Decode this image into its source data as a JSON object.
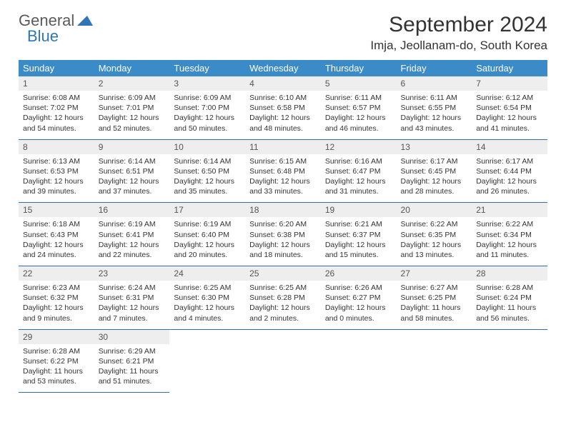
{
  "logo": {
    "line1": "General",
    "line2": "Blue"
  },
  "title": "September 2024",
  "location": "Imja, Jeollanam-do, South Korea",
  "colors": {
    "header_bg": "#3b8bc8",
    "header_text": "#ffffff",
    "daynum_bg": "#eeeeee",
    "row_border": "#2f6ea8",
    "logo_blue": "#2f76b8",
    "body_text": "#333333"
  },
  "weekdays": [
    "Sunday",
    "Monday",
    "Tuesday",
    "Wednesday",
    "Thursday",
    "Friday",
    "Saturday"
  ],
  "weeks": [
    [
      {
        "n": "1",
        "sr": "6:08 AM",
        "ss": "7:02 PM",
        "dl": "12 hours and 54 minutes."
      },
      {
        "n": "2",
        "sr": "6:09 AM",
        "ss": "7:01 PM",
        "dl": "12 hours and 52 minutes."
      },
      {
        "n": "3",
        "sr": "6:09 AM",
        "ss": "7:00 PM",
        "dl": "12 hours and 50 minutes."
      },
      {
        "n": "4",
        "sr": "6:10 AM",
        "ss": "6:58 PM",
        "dl": "12 hours and 48 minutes."
      },
      {
        "n": "5",
        "sr": "6:11 AM",
        "ss": "6:57 PM",
        "dl": "12 hours and 46 minutes."
      },
      {
        "n": "6",
        "sr": "6:11 AM",
        "ss": "6:55 PM",
        "dl": "12 hours and 43 minutes."
      },
      {
        "n": "7",
        "sr": "6:12 AM",
        "ss": "6:54 PM",
        "dl": "12 hours and 41 minutes."
      }
    ],
    [
      {
        "n": "8",
        "sr": "6:13 AM",
        "ss": "6:53 PM",
        "dl": "12 hours and 39 minutes."
      },
      {
        "n": "9",
        "sr": "6:14 AM",
        "ss": "6:51 PM",
        "dl": "12 hours and 37 minutes."
      },
      {
        "n": "10",
        "sr": "6:14 AM",
        "ss": "6:50 PM",
        "dl": "12 hours and 35 minutes."
      },
      {
        "n": "11",
        "sr": "6:15 AM",
        "ss": "6:48 PM",
        "dl": "12 hours and 33 minutes."
      },
      {
        "n": "12",
        "sr": "6:16 AM",
        "ss": "6:47 PM",
        "dl": "12 hours and 31 minutes."
      },
      {
        "n": "13",
        "sr": "6:17 AM",
        "ss": "6:45 PM",
        "dl": "12 hours and 28 minutes."
      },
      {
        "n": "14",
        "sr": "6:17 AM",
        "ss": "6:44 PM",
        "dl": "12 hours and 26 minutes."
      }
    ],
    [
      {
        "n": "15",
        "sr": "6:18 AM",
        "ss": "6:43 PM",
        "dl": "12 hours and 24 minutes."
      },
      {
        "n": "16",
        "sr": "6:19 AM",
        "ss": "6:41 PM",
        "dl": "12 hours and 22 minutes."
      },
      {
        "n": "17",
        "sr": "6:19 AM",
        "ss": "6:40 PM",
        "dl": "12 hours and 20 minutes."
      },
      {
        "n": "18",
        "sr": "6:20 AM",
        "ss": "6:38 PM",
        "dl": "12 hours and 18 minutes."
      },
      {
        "n": "19",
        "sr": "6:21 AM",
        "ss": "6:37 PM",
        "dl": "12 hours and 15 minutes."
      },
      {
        "n": "20",
        "sr": "6:22 AM",
        "ss": "6:35 PM",
        "dl": "12 hours and 13 minutes."
      },
      {
        "n": "21",
        "sr": "6:22 AM",
        "ss": "6:34 PM",
        "dl": "12 hours and 11 minutes."
      }
    ],
    [
      {
        "n": "22",
        "sr": "6:23 AM",
        "ss": "6:32 PM",
        "dl": "12 hours and 9 minutes."
      },
      {
        "n": "23",
        "sr": "6:24 AM",
        "ss": "6:31 PM",
        "dl": "12 hours and 7 minutes."
      },
      {
        "n": "24",
        "sr": "6:25 AM",
        "ss": "6:30 PM",
        "dl": "12 hours and 4 minutes."
      },
      {
        "n": "25",
        "sr": "6:25 AM",
        "ss": "6:28 PM",
        "dl": "12 hours and 2 minutes."
      },
      {
        "n": "26",
        "sr": "6:26 AM",
        "ss": "6:27 PM",
        "dl": "12 hours and 0 minutes."
      },
      {
        "n": "27",
        "sr": "6:27 AM",
        "ss": "6:25 PM",
        "dl": "11 hours and 58 minutes."
      },
      {
        "n": "28",
        "sr": "6:28 AM",
        "ss": "6:24 PM",
        "dl": "11 hours and 56 minutes."
      }
    ],
    [
      {
        "n": "29",
        "sr": "6:28 AM",
        "ss": "6:22 PM",
        "dl": "11 hours and 53 minutes."
      },
      {
        "n": "30",
        "sr": "6:29 AM",
        "ss": "6:21 PM",
        "dl": "11 hours and 51 minutes."
      },
      null,
      null,
      null,
      null,
      null
    ]
  ],
  "labels": {
    "sunrise": "Sunrise:",
    "sunset": "Sunset:",
    "daylight": "Daylight:"
  }
}
